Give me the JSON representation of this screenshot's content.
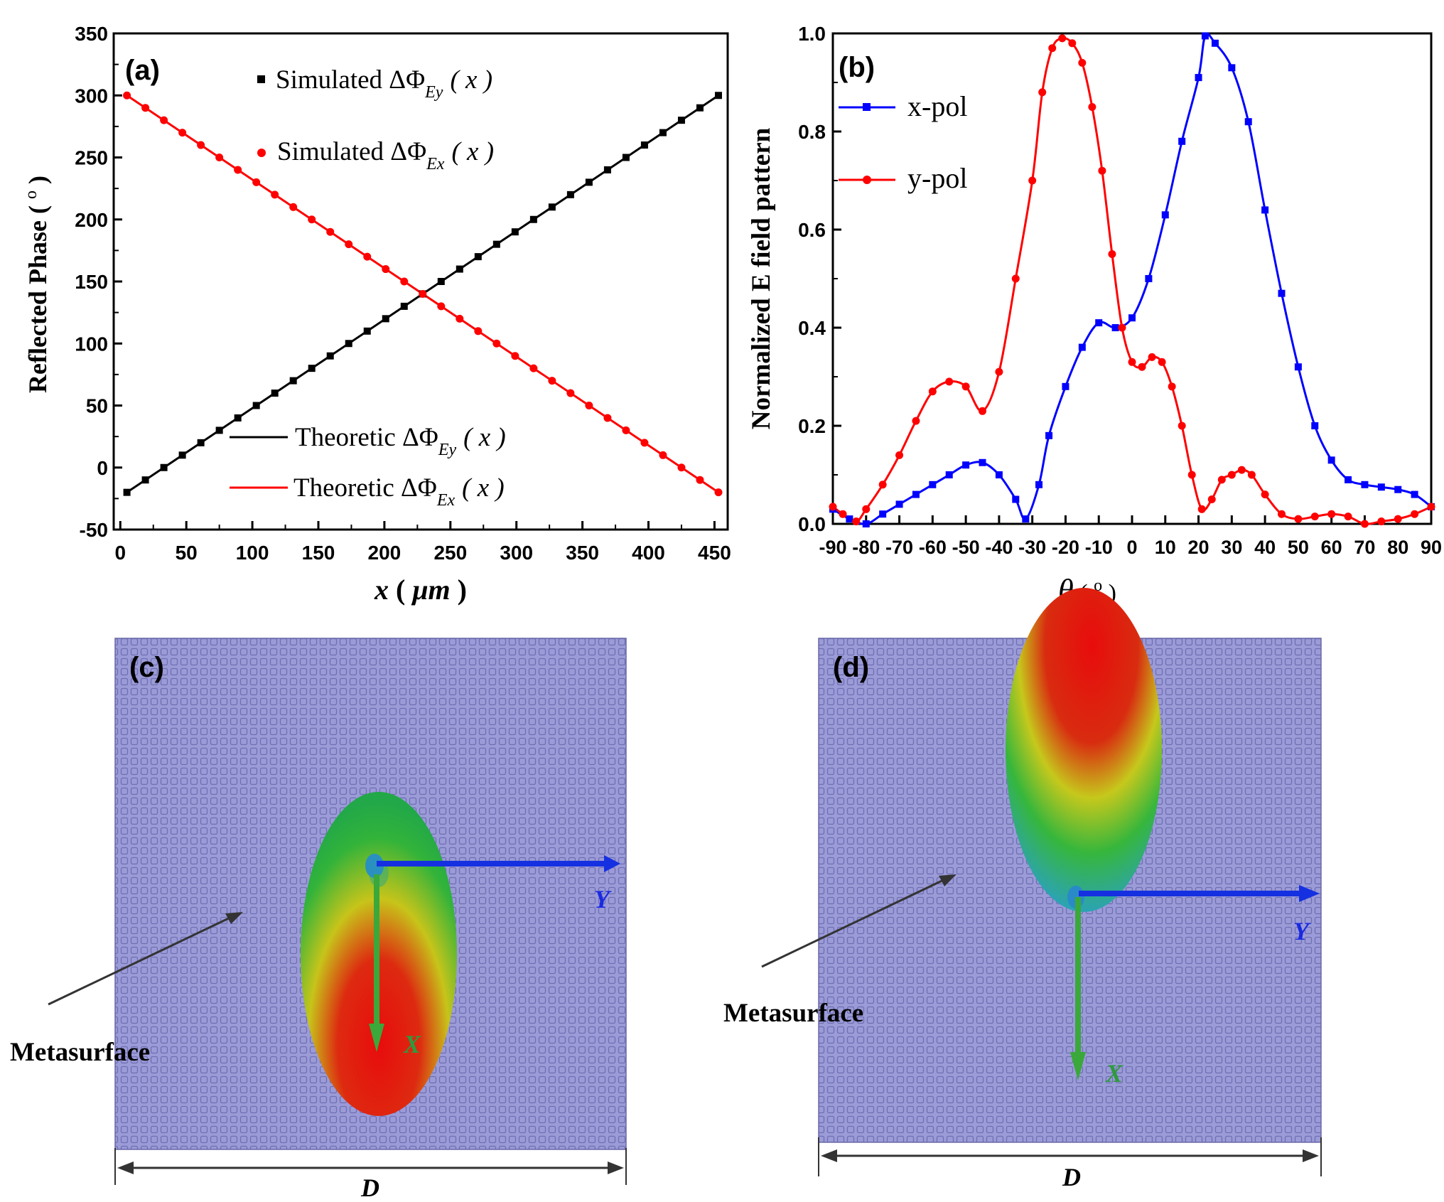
{
  "chart_data": [
    {
      "panel": "(a)",
      "type": "line",
      "title": "",
      "xlabel_var": "x",
      "xlabel_unit": "μm",
      "ylabel": "Reflected Phase",
      "ylabel_unit": "o",
      "xlim": [
        -5,
        460
      ],
      "ylim": [
        -50,
        350
      ],
      "xticks": [
        0,
        50,
        100,
        150,
        200,
        250,
        300,
        350,
        400,
        450
      ],
      "yticks": [
        -50,
        0,
        50,
        100,
        150,
        200,
        250,
        300,
        350
      ],
      "legend_top": [
        {
          "label": "Simulated ΔΦ",
          "sub": "Ey",
          "arg": "( x )",
          "color": "#000000",
          "marker": "square"
        },
        {
          "label": "Simulated ΔΦ",
          "sub": "Ex",
          "arg": "( x )",
          "color": "#ff0000",
          "marker": "circle"
        }
      ],
      "legend_bottom": [
        {
          "label": "Theoretic ΔΦ",
          "sub": "Ey",
          "arg": "( x )",
          "color": "#000000"
        },
        {
          "label": "Theoretic ΔΦ",
          "sub": "Ex",
          "arg": "( x )",
          "color": "#ff0000"
        }
      ],
      "series": [
        {
          "name": "Simulated ΔΦEy(x)",
          "color": "#000000",
          "marker": "square",
          "x_start": 5,
          "x_end": 453,
          "y_start": -20,
          "y_end": 300,
          "points": 33
        },
        {
          "name": "Simulated ΔΦEx(x)",
          "color": "#ff0000",
          "marker": "circle",
          "x_start": 5,
          "x_end": 453,
          "y_start": 300,
          "y_end": -20,
          "points": 33
        }
      ]
    },
    {
      "panel": "(b)",
      "type": "line",
      "title": "",
      "xlabel_var": "θ",
      "xlabel_unit": "o",
      "ylabel": "Normalized E field pattern",
      "xlim": [
        -90,
        90
      ],
      "ylim": [
        0,
        1.0
      ],
      "xticks": [
        -90,
        -80,
        -70,
        -60,
        -50,
        -40,
        -30,
        -20,
        -10,
        0,
        10,
        20,
        30,
        40,
        50,
        60,
        70,
        80,
        90
      ],
      "yticks": [
        "0.0",
        "0.2",
        "0.4",
        "0.6",
        "0.8",
        "1.0"
      ],
      "series": [
        {
          "name": "x-pol",
          "color": "#0000ff",
          "marker": "square",
          "x": [
            -90,
            -85,
            -80,
            -75,
            -70,
            -65,
            -60,
            -55,
            -50,
            -45,
            -40,
            -35,
            -32,
            -28,
            -25,
            -20,
            -15,
            -10,
            -5,
            0,
            5,
            10,
            15,
            20,
            22,
            25,
            30,
            35,
            40,
            45,
            50,
            55,
            60,
            65,
            70,
            75,
            80,
            85,
            90
          ],
          "y": [
            0.03,
            0.01,
            0.0,
            0.02,
            0.04,
            0.06,
            0.08,
            0.1,
            0.12,
            0.125,
            0.1,
            0.05,
            0.01,
            0.08,
            0.18,
            0.28,
            0.36,
            0.41,
            0.4,
            0.42,
            0.5,
            0.63,
            0.78,
            0.91,
            0.995,
            0.98,
            0.93,
            0.82,
            0.64,
            0.47,
            0.32,
            0.2,
            0.13,
            0.09,
            0.08,
            0.075,
            0.07,
            0.06,
            0.035
          ]
        },
        {
          "name": "y-pol",
          "color": "#ff0000",
          "marker": "circle",
          "x": [
            -90,
            -87,
            -83,
            -80,
            -75,
            -70,
            -65,
            -60,
            -55,
            -50,
            -45,
            -40,
            -35,
            -30,
            -27,
            -24,
            -21,
            -18,
            -15,
            -12,
            -9,
            -6,
            -3,
            0,
            3,
            6,
            9,
            12,
            15,
            18,
            21,
            24,
            27,
            30,
            33,
            36,
            40,
            45,
            50,
            55,
            60,
            65,
            70,
            75,
            80,
            85,
            90
          ],
          "y": [
            0.035,
            0.02,
            0.005,
            0.03,
            0.08,
            0.14,
            0.21,
            0.27,
            0.29,
            0.28,
            0.23,
            0.31,
            0.5,
            0.7,
            0.88,
            0.97,
            0.99,
            0.98,
            0.94,
            0.85,
            0.72,
            0.55,
            0.4,
            0.33,
            0.32,
            0.34,
            0.33,
            0.28,
            0.2,
            0.1,
            0.03,
            0.05,
            0.09,
            0.1,
            0.11,
            0.1,
            0.06,
            0.02,
            0.01,
            0.015,
            0.02,
            0.015,
            0.0,
            0.005,
            0.01,
            0.02,
            0.035
          ]
        }
      ]
    }
  ],
  "panel_c": {
    "label": "(c)",
    "metasurface_label": "Metasurface",
    "x_axis_label": "X",
    "y_axis_label": "Y",
    "dimension_label": "D"
  },
  "panel_d": {
    "label": "(d)",
    "metasurface_label": "Metasurface",
    "x_axis_label": "X",
    "y_axis_label": "Y",
    "dimension_label": "D"
  },
  "colors": {
    "metasurface_fill": "#9a9ad6",
    "metasurface_grid": "#6d6db0",
    "beam_red": "#e01010",
    "beam_green": "#2ab43a",
    "axis_y_arrow": "#1530e0",
    "axis_x_arrow": "#3aa83a"
  }
}
